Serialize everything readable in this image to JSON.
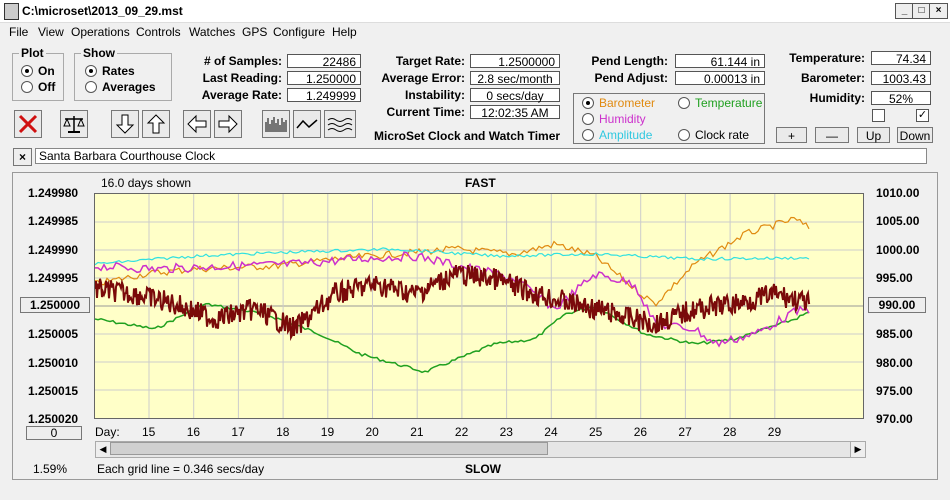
{
  "window": {
    "title": "C:\\microset\\2013_09_29.mst"
  },
  "menu": [
    "File",
    "View",
    "Operations",
    "Controls",
    "Watches",
    "GPS",
    "Configure",
    "Help"
  ],
  "plot_group": {
    "title": "Plot",
    "on": "On",
    "off": "Off"
  },
  "show_group": {
    "title": "Show",
    "rates": "Rates",
    "averages": "Averages"
  },
  "stats": {
    "samples_label": "# of Samples:",
    "samples": "22486",
    "last_reading_label": "Last Reading:",
    "last_reading": "1.250000",
    "avg_rate_label": "Average Rate:",
    "avg_rate": "1.249999",
    "target_rate_label": "Target Rate:",
    "target_rate": "1.2500000",
    "avg_error_label": "Average Error:",
    "avg_error": "2.8 sec/month",
    "instability_label": "Instability:",
    "instability": "0 secs/day",
    "current_time_label": "Current Time:",
    "current_time": "12:02:35 AM",
    "pend_length_label": "Pend Length:",
    "pend_length": "61.144 in",
    "pend_adjust_label": "Pend Adjust:",
    "pend_adjust": "0.00013 in",
    "temperature_label": "Temperature:",
    "temperature": "74.34",
    "barometer_label": "Barometer:",
    "barometer": "1003.43",
    "humidity_label": "Humidity:",
    "humidity": "52%"
  },
  "app_name": "MicroSet Clock and Watch Timer",
  "sensors": {
    "barometer": "Barometer",
    "temperature": "Temperature",
    "humidity": "Humidity",
    "amplitude": "Amplitude",
    "clock_rate": "Clock rate"
  },
  "scale_buttons": {
    "plus": "+",
    "minus": "—",
    "up": "Up",
    "down": "Down"
  },
  "watch_name": "Santa Barbara Courthouse Clock",
  "colors": {
    "barometer": "#e08a10",
    "temperature": "#20a020",
    "humidity": "#cc30cc",
    "amplitude": "#30e0e0",
    "rate": "#7a0a0a"
  },
  "chart": {
    "days_shown": "16.0 days shown",
    "top_label": "FAST",
    "bottom_label": "SLOW",
    "left_ticks": [
      "1.249980",
      "1.249985",
      "1.249990",
      "1.249995",
      "1.250000",
      "1.250005",
      "1.250010",
      "1.250015",
      "1.250020"
    ],
    "right_ticks": [
      "1010.00",
      "1005.00",
      "1000.00",
      "995.00",
      "990.00",
      "985.00",
      "980.00",
      "975.00",
      "970.00"
    ],
    "left_center": "1.250000",
    "right_center": "990.00",
    "left_zero": "0",
    "day_label": "Day:",
    "days": [
      "15",
      "16",
      "17",
      "18",
      "19",
      "20",
      "21",
      "22",
      "23",
      "24",
      "25",
      "26",
      "27",
      "28",
      "29"
    ],
    "percent": "1.59%",
    "grid_note": "Each grid line = 0.346 secs/day"
  }
}
